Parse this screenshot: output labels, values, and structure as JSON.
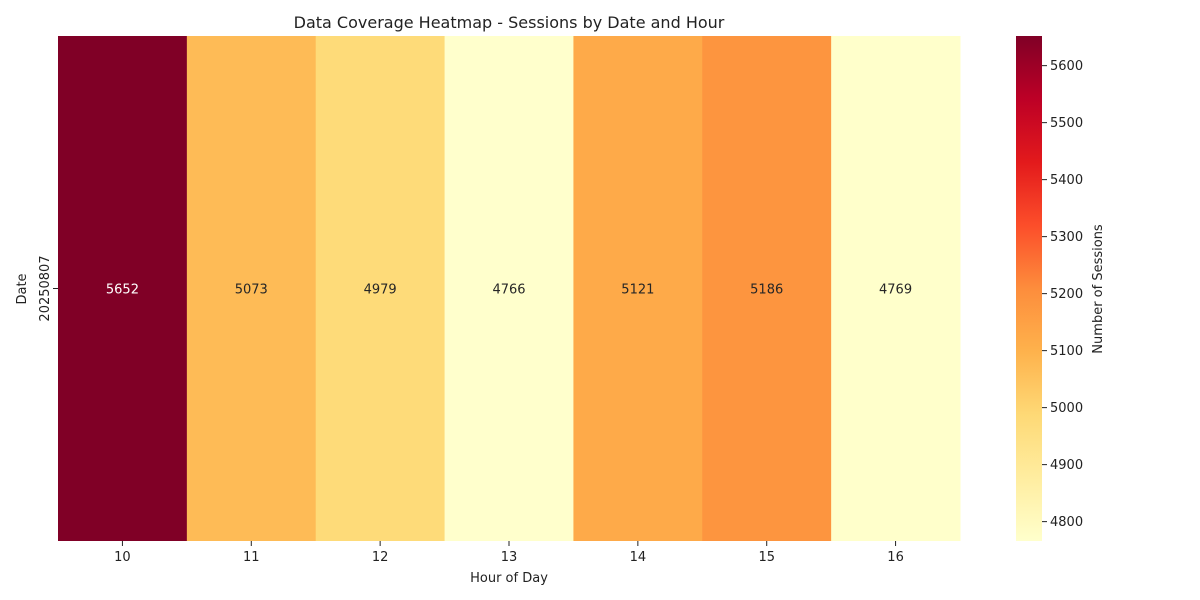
{
  "chart_data": {
    "type": "heatmap",
    "title": "Data Coverage Heatmap - Sessions by Date and Hour",
    "xlabel": "Hour of Day",
    "ylabel": "Date",
    "x_categories": [
      "10",
      "11",
      "12",
      "13",
      "14",
      "15",
      "16"
    ],
    "y_categories": [
      "20250807"
    ],
    "values": [
      [
        5652,
        5073,
        4979,
        4766,
        5121,
        5186,
        4769
      ]
    ],
    "colorbar": {
      "label": "Number of Sessions",
      "min": 4766,
      "max": 5652,
      "ticks": [
        4800,
        4900,
        5000,
        5100,
        5200,
        5300,
        5400,
        5500,
        5600
      ],
      "colormap": "YlOrRd",
      "colors": [
        "#ffffcc",
        "#ffeda0",
        "#fed976",
        "#feb24c",
        "#fd8d3c",
        "#fc4e2a",
        "#e31a1c",
        "#bd0026",
        "#800026"
      ]
    }
  }
}
